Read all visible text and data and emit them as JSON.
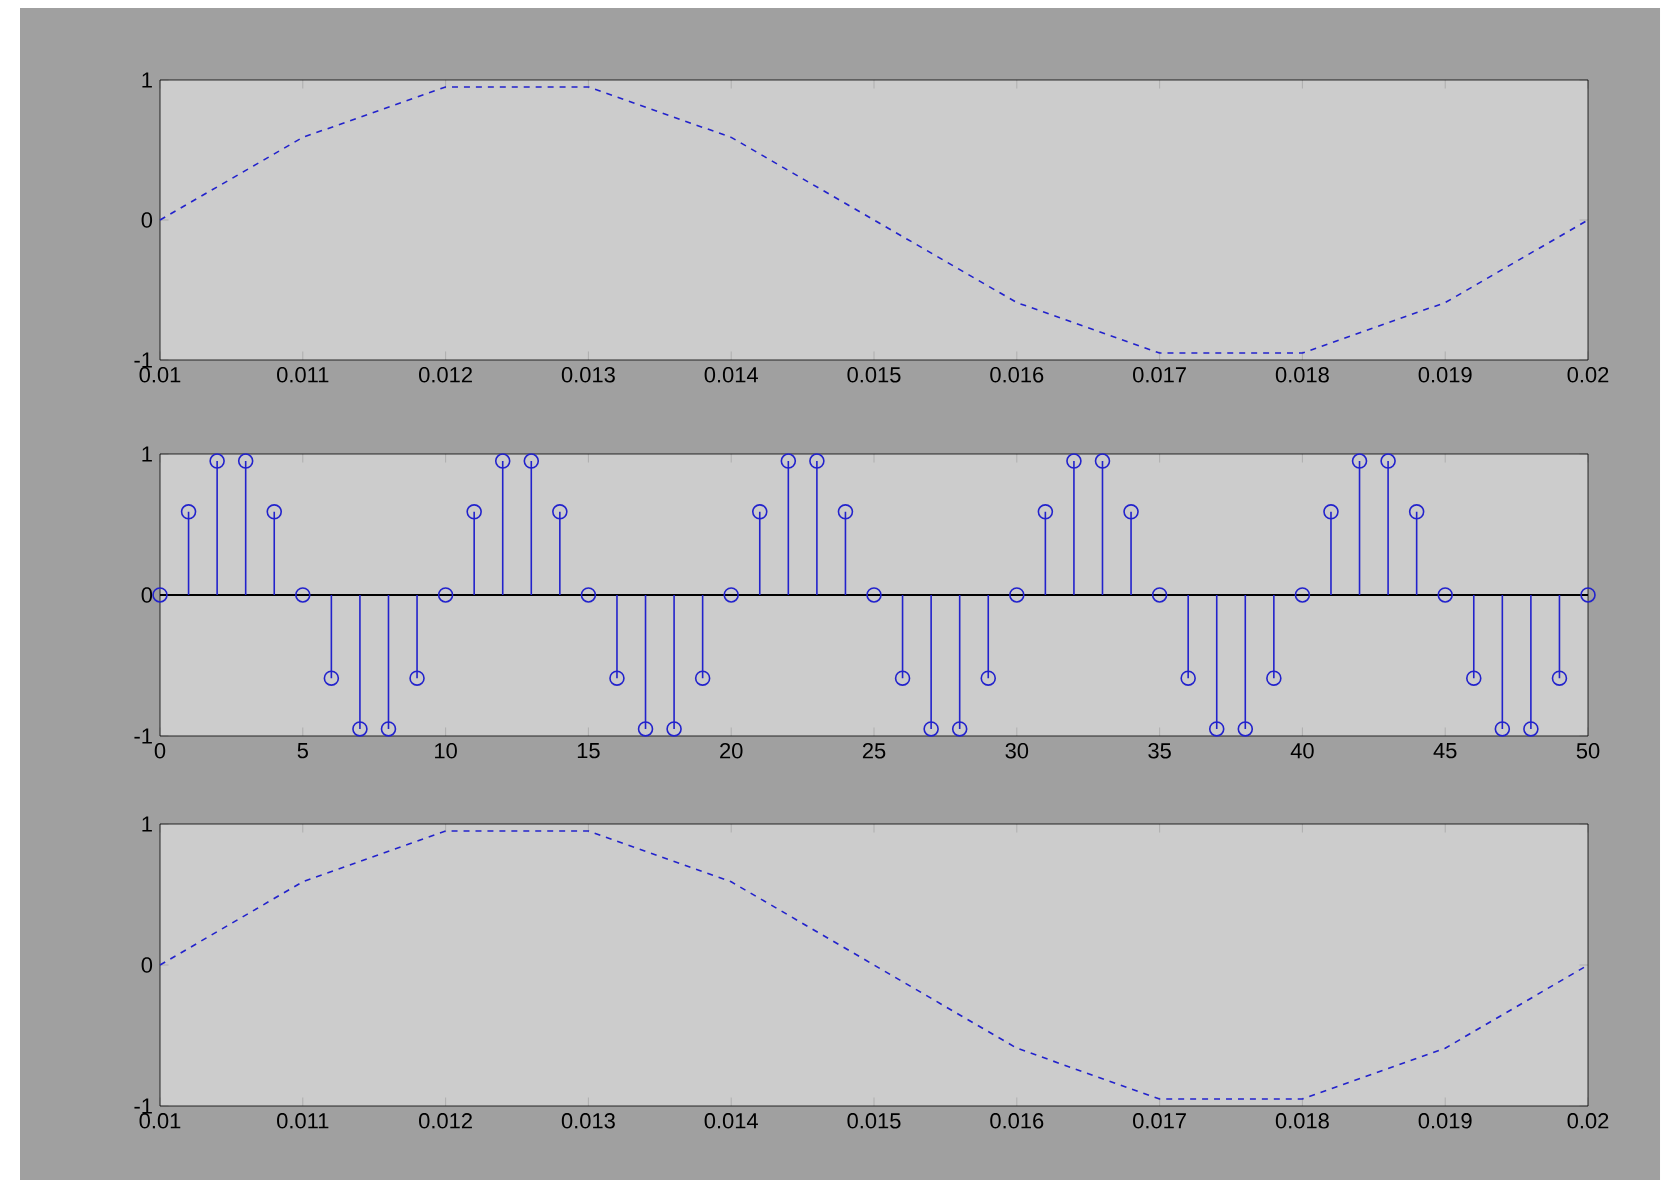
{
  "chart_data": [
    {
      "type": "line",
      "x": [
        0.01,
        0.011,
        0.012,
        0.013,
        0.014,
        0.015,
        0.016,
        0.017,
        0.018,
        0.019,
        0.02
      ],
      "values": [
        0,
        0.59,
        0.95,
        0.95,
        0.59,
        0,
        -0.59,
        -0.95,
        -0.95,
        -0.59,
        0
      ],
      "color": "#2222cc",
      "line_style": "dashed",
      "marker": "none",
      "xlim": [
        0.01,
        0.02
      ],
      "ylim": [
        -1,
        1
      ],
      "xticks": [
        0.01,
        0.011,
        0.012,
        0.013,
        0.014,
        0.015,
        0.016,
        0.017,
        0.018,
        0.019,
        0.02
      ],
      "yticks": [
        -1,
        0,
        1
      ]
    },
    {
      "type": "lollipop",
      "x": [
        0,
        1,
        2,
        3,
        4,
        5,
        6,
        7,
        8,
        9,
        10,
        11,
        12,
        13,
        14,
        15,
        16,
        17,
        18,
        19,
        20,
        21,
        22,
        23,
        24,
        25,
        26,
        27,
        28,
        29,
        30,
        31,
        32,
        33,
        34,
        35,
        36,
        37,
        38,
        39,
        40,
        41,
        42,
        43,
        44,
        45,
        46,
        47,
        48,
        49,
        50
      ],
      "values": [
        0,
        0.59,
        0.95,
        0.95,
        0.59,
        0,
        -0.59,
        -0.95,
        -0.95,
        -0.59,
        0,
        0.59,
        0.95,
        0.95,
        0.59,
        0,
        -0.59,
        -0.95,
        -0.95,
        -0.59,
        0,
        0.59,
        0.95,
        0.95,
        0.59,
        0,
        -0.59,
        -0.95,
        -0.95,
        -0.59,
        0,
        0.59,
        0.95,
        0.95,
        0.59,
        0,
        -0.59,
        -0.95,
        -0.95,
        -0.59,
        0,
        0.59,
        0.95,
        0.95,
        0.59,
        0,
        -0.59,
        -0.95,
        -0.95,
        -0.59,
        0
      ],
      "color": "#2222cc",
      "marker": "circle",
      "xlim": [
        0,
        50
      ],
      "ylim": [
        -1,
        1
      ],
      "xticks": [
        0,
        5,
        10,
        15,
        20,
        25,
        30,
        35,
        40,
        45,
        50
      ],
      "yticks": [
        -1,
        0,
        1
      ],
      "ref_lines": [
        {
          "axis": "y",
          "value": 0,
          "color": "#000000"
        }
      ]
    },
    {
      "type": "line",
      "x": [
        0.01,
        0.011,
        0.012,
        0.013,
        0.014,
        0.015,
        0.016,
        0.017,
        0.018,
        0.019,
        0.02
      ],
      "values": [
        0,
        0.59,
        0.95,
        0.95,
        0.59,
        0,
        -0.59,
        -0.95,
        -0.95,
        -0.59,
        0
      ],
      "color": "#2222cc",
      "line_style": "dashed",
      "marker": "none",
      "xlim": [
        0.01,
        0.02
      ],
      "ylim": [
        -1,
        1
      ],
      "xticks": [
        0.01,
        0.011,
        0.012,
        0.013,
        0.014,
        0.015,
        0.016,
        0.017,
        0.018,
        0.019,
        0.02
      ],
      "yticks": [
        -1,
        0,
        1
      ]
    }
  ]
}
